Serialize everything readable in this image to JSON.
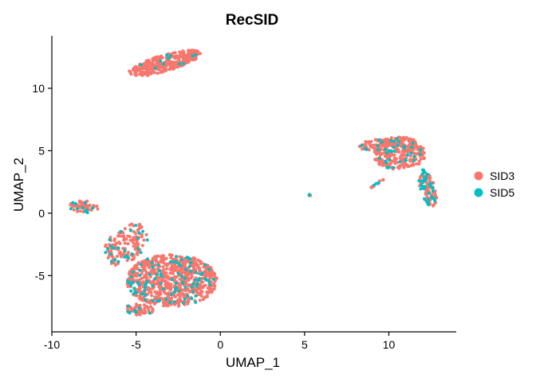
{
  "chart_data": {
    "type": "scatter",
    "title": "RecSID",
    "xlabel": "UMAP_1",
    "ylabel": "UMAP_2",
    "xlim": [
      -10,
      14
    ],
    "ylim": [
      -9.5,
      14.2
    ],
    "xticks": [
      -10,
      -5,
      0,
      5,
      10
    ],
    "yticks": [
      -5,
      0,
      5,
      10
    ],
    "xtick_labels": [
      "-10",
      "-5",
      "0",
      "5",
      "10"
    ],
    "ytick_labels": [
      "-5",
      "0",
      "5",
      "10"
    ],
    "grid": false,
    "legend_position": "right",
    "series": [
      {
        "name": "SID3",
        "color": "#F8766D"
      },
      {
        "name": "SID5",
        "color": "#00BFC4"
      }
    ],
    "clusters": [
      {
        "shape": "ellipse",
        "cx": -3.3,
        "cy": 12.0,
        "rx": 2.3,
        "ry": 0.65,
        "angle_deg": 22,
        "n": 320,
        "share_sid5": 0.05
      },
      {
        "shape": "ellipse",
        "cx": -8.1,
        "cy": 0.5,
        "rx": 0.85,
        "ry": 0.5,
        "angle_deg": -5,
        "n": 70,
        "share_sid5": 0.12
      },
      {
        "shape": "ellipse",
        "cx": -5.6,
        "cy": -2.5,
        "rx": 1.1,
        "ry": 1.8,
        "angle_deg": -28,
        "n": 150,
        "share_sid5": 0.15
      },
      {
        "shape": "ellipse",
        "cx": -2.9,
        "cy": -5.4,
        "rx": 2.7,
        "ry": 2.1,
        "angle_deg": 0,
        "n": 820,
        "share_sid5": 0.12
      },
      {
        "shape": "ellipse",
        "cx": -4.8,
        "cy": -7.7,
        "rx": 0.9,
        "ry": 0.45,
        "angle_deg": 0,
        "n": 60,
        "share_sid5": 0.12
      },
      {
        "shape": "ellipse",
        "cx": 10.6,
        "cy": 4.8,
        "rx": 1.6,
        "ry": 1.3,
        "angle_deg": 0,
        "n": 300,
        "share_sid5": 0.14
      },
      {
        "shape": "ellipse",
        "cx": 9.3,
        "cy": 5.5,
        "rx": 1.1,
        "ry": 0.45,
        "angle_deg": 12,
        "n": 70,
        "share_sid5": 0.12
      },
      {
        "shape": "ellipse",
        "cx": 12.3,
        "cy": 2.0,
        "rx": 0.45,
        "ry": 1.5,
        "angle_deg": 12,
        "n": 110,
        "share_sid5": 0.32
      },
      {
        "shape": "line",
        "from": [
          8.8,
          1.9
        ],
        "to": [
          9.7,
          2.7
        ],
        "spread": 0.1,
        "n": 14,
        "share_sid5": 0.1
      },
      {
        "shape": "ellipse",
        "cx": 5.3,
        "cy": 1.45,
        "rx": 0.06,
        "ry": 0.06,
        "angle_deg": 0,
        "n": 5,
        "share_sid5": 0.3
      }
    ]
  }
}
